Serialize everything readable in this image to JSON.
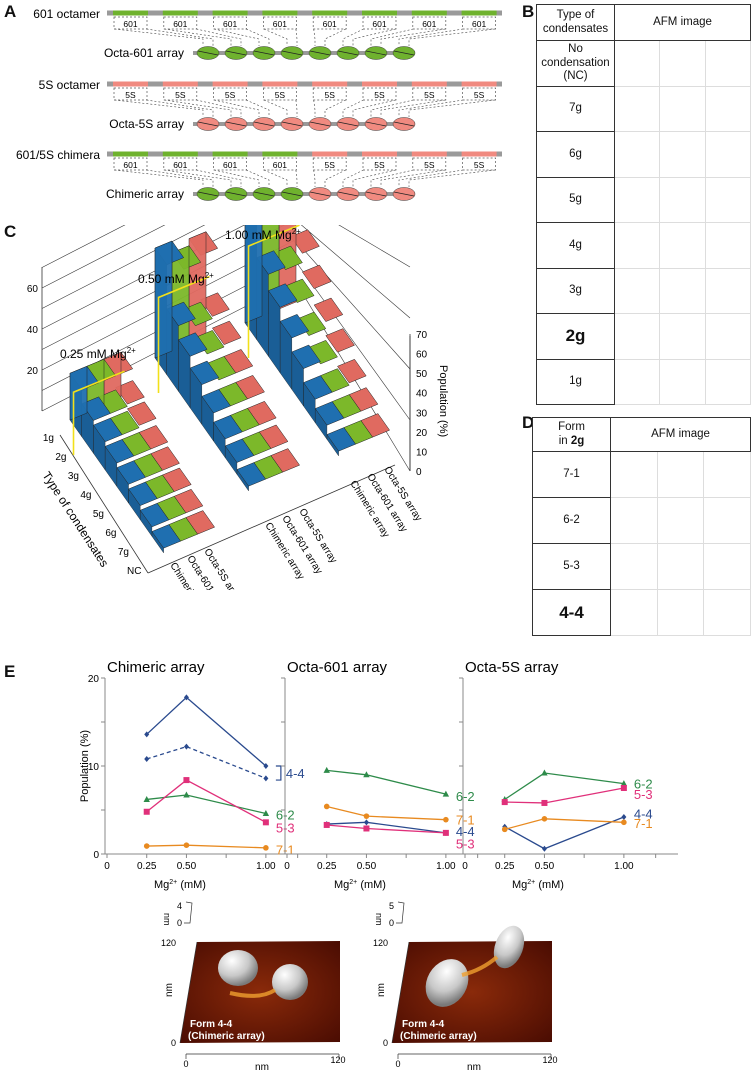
{
  "panels": {
    "A": {
      "letter": "A",
      "rows": [
        {
          "label": "601 octamer",
          "segments": [
            "601",
            "601",
            "601",
            "601",
            "601",
            "601",
            "601",
            "601"
          ],
          "array_label": "Octa-601 array",
          "nucleosomes": [
            "601",
            "601",
            "601",
            "601",
            "601",
            "601",
            "601",
            "601"
          ]
        },
        {
          "label": "5S octamer",
          "segments": [
            "5S",
            "5S",
            "5S",
            "5S",
            "5S",
            "5S",
            "5S",
            "5S"
          ],
          "array_label": "Octa-5S array",
          "nucleosomes": [
            "5S",
            "5S",
            "5S",
            "5S",
            "5S",
            "5S",
            "5S",
            "5S"
          ]
        },
        {
          "label": "601/5S chimera",
          "segments": [
            "601",
            "601",
            "601",
            "601",
            "5S",
            "5S",
            "5S",
            "5S"
          ],
          "array_label": "Chimeric array",
          "nucleosomes": [
            "601",
            "601",
            "601",
            "601",
            "5S",
            "5S",
            "5S",
            "5S"
          ]
        }
      ],
      "colors": {
        "601": "#6fb22e",
        "5S": "#f08a80",
        "linker": "#9a9a9a"
      }
    },
    "B": {
      "letter": "B",
      "header": [
        "Type of condensates",
        "AFM image"
      ],
      "rows": [
        "No condensation (NC)",
        "7g",
        "6g",
        "5g",
        "4g",
        "3g",
        "2g",
        "1g"
      ],
      "bold_row": "2g"
    },
    "C": {
      "letter": "C"
    },
    "D": {
      "letter": "D",
      "header_line1": "Form",
      "header_line2_prefix": "in ",
      "header_line2_bold": "2g",
      "header_col2": "AFM image",
      "rows": [
        "7-1",
        "6-2",
        "5-3",
        "4-4"
      ],
      "bold_row": "4-4"
    },
    "E": {
      "letter": "E",
      "afm3d": [
        {
          "z_max": "4",
          "z_min": "0",
          "z_unit": "nm",
          "y_max": "120",
          "y_min": "0",
          "y_unit": "nm",
          "x_min": "0",
          "x_max": "120",
          "x_unit": "nm",
          "caption1": "Form 4-4",
          "caption2": "(Chimeric array)"
        },
        {
          "z_max": "5",
          "z_min": "0",
          "z_unit": "nm",
          "y_max": "120",
          "y_min": "0",
          "y_unit": "nm",
          "x_min": "0",
          "x_max": "120",
          "x_unit": "nm",
          "caption1": "Form 4-4",
          "caption2": "(Chimeric array)"
        }
      ]
    }
  },
  "chart_data": [
    {
      "type": "bar",
      "subtype": "3d-ribbon",
      "panel": "C",
      "groups": [
        "0.25 mM Mg2+",
        "0.50 mM Mg2+",
        "1.00 mM Mg2+"
      ],
      "group_labels": [
        {
          "main": "0.25 mM Mg",
          "sup": "2+"
        },
        {
          "main": "0.50 mM Mg",
          "sup": "2+"
        },
        {
          "main": "1.00 mM Mg",
          "sup": "2+"
        }
      ],
      "categories": [
        "1g",
        "2g",
        "3g",
        "4g",
        "5g",
        "6g",
        "7g",
        "NC"
      ],
      "series_names": [
        "Chimeric array",
        "Octa-601 array",
        "Octa-5S array"
      ],
      "series_colors": [
        "#1f6fb0",
        "#7cb82a",
        "#e06a60"
      ],
      "xlabel": "Type of condensates",
      "zlabel": "Population (%)",
      "z_ticks": [
        0,
        10,
        20,
        30,
        40,
        50,
        60,
        70
      ],
      "left_ticks": [
        20,
        40,
        60
      ],
      "zlim": [
        0,
        70
      ],
      "values": {
        "0.25 mM Mg2+": {
          "Chimeric array": [
            20,
            14,
            12,
            10,
            8,
            6,
            4,
            2
          ],
          "Octa-601 array": [
            20,
            14,
            12,
            10,
            8,
            6,
            4,
            2
          ],
          "Octa-5S array": [
            20,
            15,
            13,
            10,
            8,
            6,
            4,
            2
          ]
        },
        "0.50 mM Mg2+": {
          "Chimeric array": [
            47,
            28,
            22,
            17,
            12,
            8,
            5,
            2
          ],
          "Octa-601 array": [
            42,
            25,
            20,
            16,
            12,
            8,
            5,
            2
          ],
          "Octa-5S array": [
            45,
            26,
            21,
            16,
            12,
            8,
            5,
            2
          ]
        },
        "1.00 mM Mg2+": {
          "Chimeric array": [
            68,
            35,
            28,
            22,
            16,
            10,
            6,
            2
          ],
          "Octa-601 array": [
            64,
            34,
            27,
            20,
            15,
            10,
            6,
            2
          ],
          "Octa-5S array": [
            60,
            38,
            30,
            23,
            17,
            11,
            6,
            2
          ]
        }
      }
    },
    {
      "type": "line",
      "panel": "E",
      "title": "Chimeric array",
      "xlabel": "Mg2+ (mM)",
      "xlabel_main": "Mg",
      "xlabel_sup": "2+",
      "xlabel_unit": " (mM)",
      "ylabel": "Population (%)",
      "x": [
        0.25,
        0.5,
        1.0
      ],
      "xlim": [
        0,
        1.2
      ],
      "ylim": [
        0,
        20
      ],
      "x_ticks": [
        "0",
        "0.25",
        "0.50",
        "1.00"
      ],
      "y_ticks": [
        "0",
        "10",
        "20"
      ],
      "series": [
        {
          "name": "4-4",
          "values": [
            13.6,
            17.8,
            10.0
          ],
          "color": "#2a4a8e",
          "marker": "diamond",
          "dash": false
        },
        {
          "name": "4-4 (dashed)",
          "values": [
            10.8,
            12.2,
            8.6
          ],
          "color": "#2a4a8e",
          "marker": "diamond",
          "dash": true
        },
        {
          "name": "6-2",
          "values": [
            6.2,
            6.7,
            4.6
          ],
          "color": "#2e8b4a",
          "marker": "triangle",
          "dash": false
        },
        {
          "name": "5-3",
          "values": [
            4.8,
            8.4,
            3.6
          ],
          "color": "#e0307a",
          "marker": "square",
          "dash": false
        },
        {
          "name": "7-1",
          "values": [
            0.9,
            1.0,
            0.7
          ],
          "color": "#e88a20",
          "marker": "circle",
          "dash": false
        }
      ],
      "labels": [
        {
          "text": "4-4",
          "color": "#2a4a8e",
          "bracket": true
        },
        {
          "text": "6-2",
          "color": "#2e8b4a"
        },
        {
          "text": "5-3",
          "color": "#e0307a"
        },
        {
          "text": "7-1",
          "color": "#e88a20"
        }
      ]
    },
    {
      "type": "line",
      "panel": "E",
      "title": "Octa-601 array",
      "xlabel": "Mg2+ (mM)",
      "xlabel_main": "Mg",
      "xlabel_sup": "2+",
      "xlabel_unit": " (mM)",
      "x": [
        0.25,
        0.5,
        1.0
      ],
      "xlim": [
        0,
        1.2
      ],
      "ylim": [
        0,
        20
      ],
      "x_ticks": [
        "0",
        "0.25",
        "0.50",
        "1.00"
      ],
      "series": [
        {
          "name": "6-2",
          "values": [
            9.5,
            9.0,
            6.8
          ],
          "color": "#2e8b4a",
          "marker": "triangle",
          "dash": false
        },
        {
          "name": "7-1",
          "values": [
            5.4,
            4.3,
            3.9
          ],
          "color": "#e88a20",
          "marker": "circle",
          "dash": false
        },
        {
          "name": "4-4",
          "values": [
            3.4,
            3.6,
            2.4
          ],
          "color": "#2a4a8e",
          "marker": "diamond",
          "dash": false
        },
        {
          "name": "5-3",
          "values": [
            3.3,
            2.9,
            2.4
          ],
          "color": "#e0307a",
          "marker": "square",
          "dash": false
        }
      ],
      "labels": [
        {
          "text": "6-2",
          "color": "#2e8b4a"
        },
        {
          "text": "7-1",
          "color": "#e88a20"
        },
        {
          "text": "4-4",
          "color": "#2a4a8e"
        },
        {
          "text": "5-3",
          "color": "#e0307a"
        }
      ]
    },
    {
      "type": "line",
      "panel": "E",
      "title": "Octa-5S array",
      "xlabel": "Mg2+ (mM)",
      "xlabel_main": "Mg",
      "xlabel_sup": "2+",
      "xlabel_unit": " (mM)",
      "x": [
        0.25,
        0.5,
        1.0
      ],
      "xlim": [
        0,
        1.2
      ],
      "ylim": [
        0,
        20
      ],
      "x_ticks": [
        "0",
        "0.25",
        "0.50",
        "1.00"
      ],
      "series": [
        {
          "name": "6-2",
          "values": [
            6.2,
            9.2,
            8.0
          ],
          "color": "#2e8b4a",
          "marker": "triangle",
          "dash": false
        },
        {
          "name": "5-3",
          "values": [
            5.9,
            5.8,
            7.5
          ],
          "color": "#e0307a",
          "marker": "square",
          "dash": false
        },
        {
          "name": "4-4",
          "values": [
            3.1,
            0.6,
            4.2
          ],
          "color": "#2a4a8e",
          "marker": "diamond",
          "dash": false
        },
        {
          "name": "7-1",
          "values": [
            2.8,
            4.0,
            3.6
          ],
          "color": "#e88a20",
          "marker": "circle",
          "dash": false
        }
      ],
      "labels": [
        {
          "text": "6-2",
          "color": "#2e8b4a"
        },
        {
          "text": "5-3",
          "color": "#e0307a"
        },
        {
          "text": "4-4",
          "color": "#2a4a8e"
        },
        {
          "text": "7-1",
          "color": "#e88a20"
        }
      ]
    }
  ]
}
